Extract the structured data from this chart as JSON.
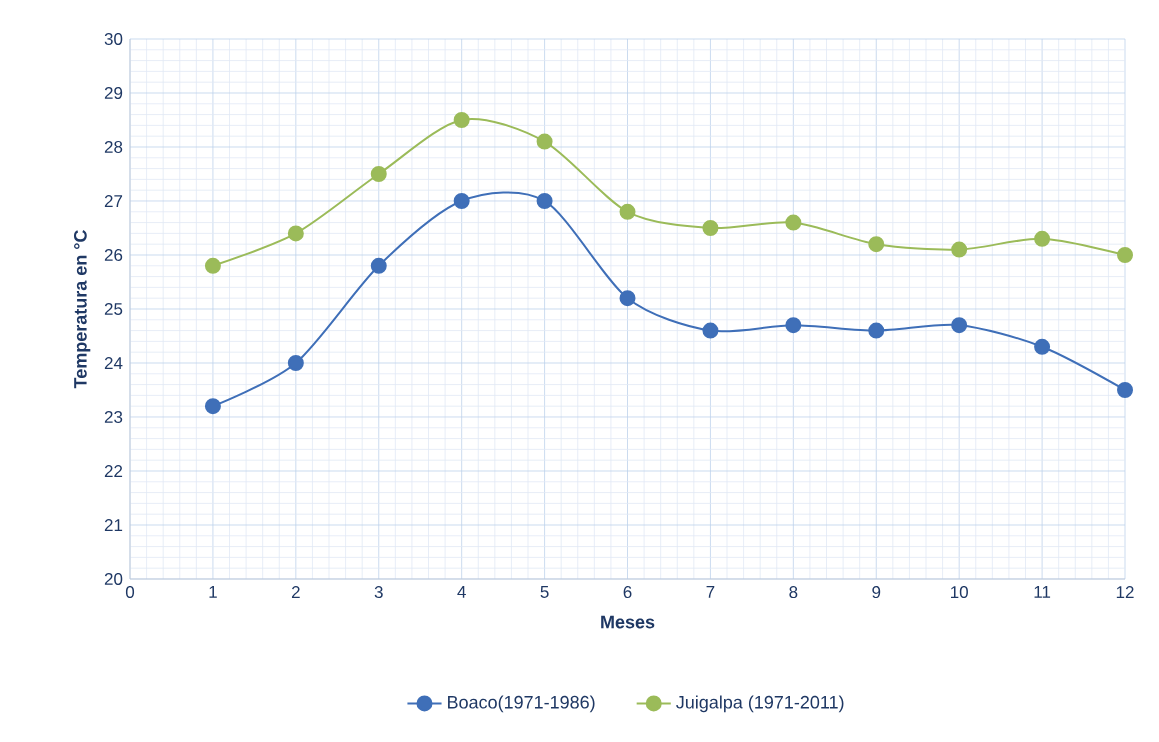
{
  "chart_data": {
    "type": "line",
    "xlabel": "Meses",
    "ylabel": "Temperatura en °C",
    "x": [
      1,
      2,
      3,
      4,
      5,
      6,
      7,
      8,
      9,
      10,
      11,
      12
    ],
    "series": [
      {
        "name": "Boaco(1971-1986)",
        "color": "#3f6fb8",
        "values": [
          23.2,
          24.0,
          25.8,
          27.0,
          27.0,
          25.2,
          24.6,
          24.7,
          24.6,
          24.7,
          24.3,
          23.5
        ]
      },
      {
        "name": "Juigalpa (1971-2011)",
        "color": "#9bbb59",
        "values": [
          25.8,
          26.4,
          27.5,
          28.5,
          28.1,
          26.8,
          26.5,
          26.6,
          26.2,
          26.1,
          26.3,
          26.0
        ]
      }
    ],
    "xlim": [
      0,
      12
    ],
    "ylim": [
      20,
      30
    ],
    "xticks": [
      0,
      1,
      2,
      3,
      4,
      5,
      6,
      7,
      8,
      9,
      10,
      11,
      12
    ],
    "yticks": [
      20,
      21,
      22,
      23,
      24,
      25,
      26,
      27,
      28,
      29,
      30
    ],
    "grid": true,
    "legend": "bottom",
    "marker": "circle",
    "line_style": "solid"
  }
}
